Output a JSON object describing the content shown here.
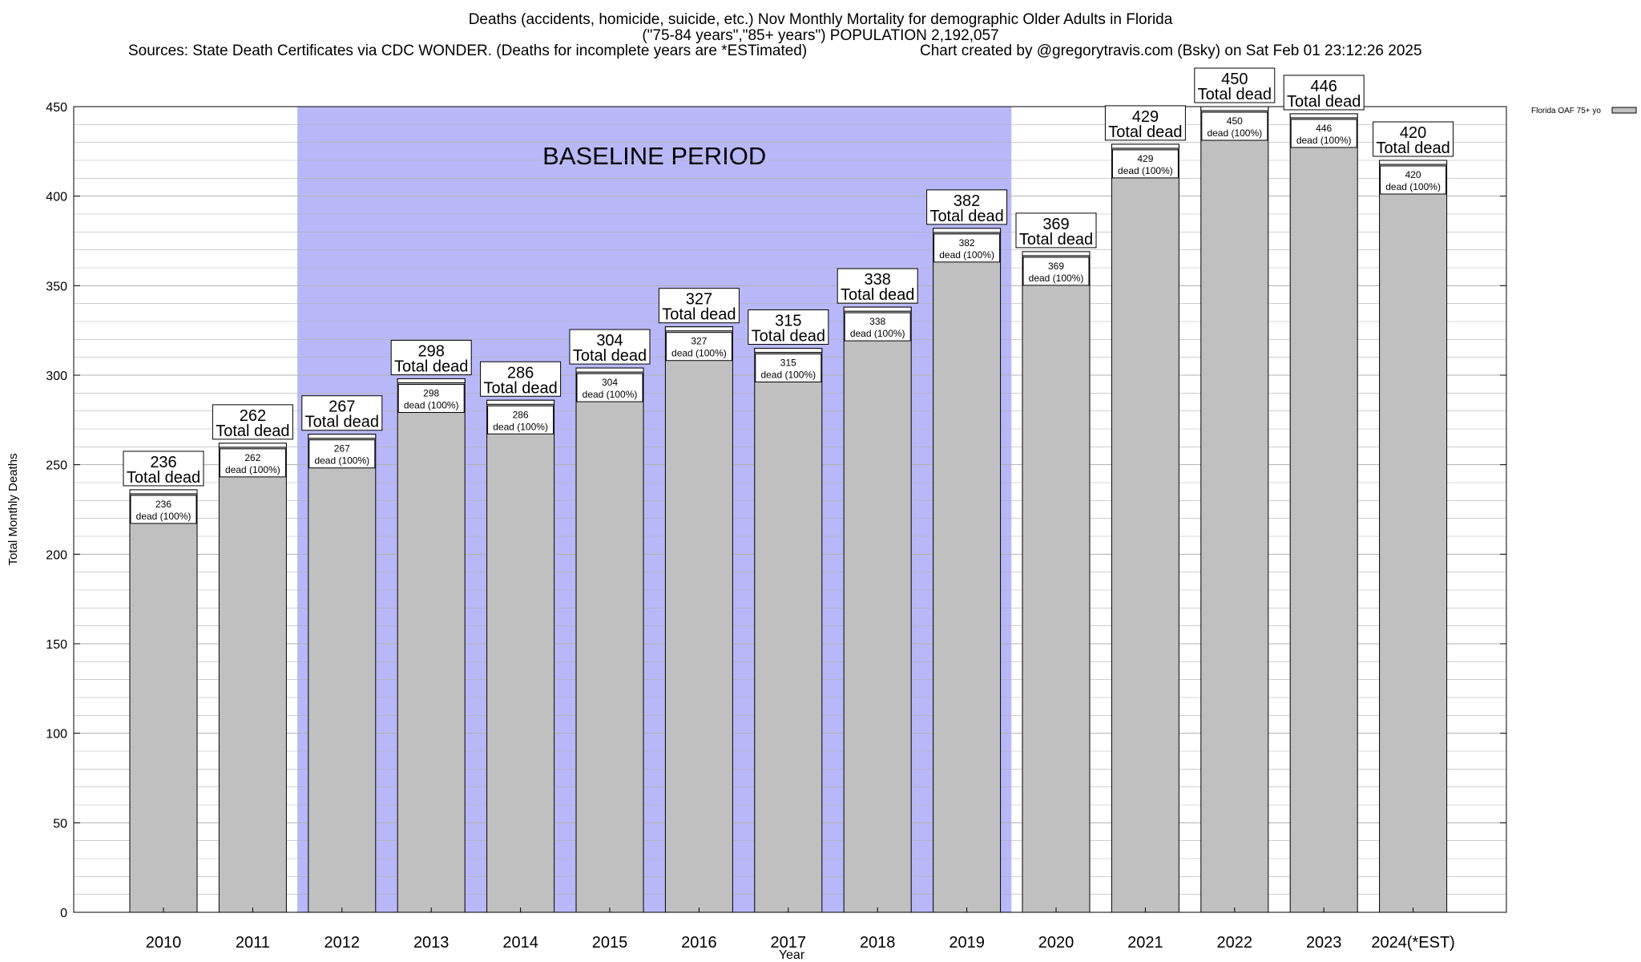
{
  "titles": {
    "line1": "Deaths (accidents, homicide, suicide, etc.) Nov Monthly Mortality for demographic Older Adults in Florida",
    "line2": "(\"75-84 years\",\"85+ years\") POPULATION 2,192,057",
    "sources": "Sources: State Death Certificates via CDC WONDER. (Deaths for incomplete years are *ESTimated)",
    "credit": "Chart created by @gregorytravis.com (Bsky) on Sat Feb 01 23:12:26 2025"
  },
  "colors": {
    "bar_fill": "#c0c0c0",
    "baseline_shade": "#b8b8f8",
    "grid": "#b0b0b0",
    "axis": "#000000"
  },
  "chart_data": {
    "type": "bar",
    "title": "Deaths (accidents, homicide, suicide, etc.) Nov Monthly Mortality for demographic Older Adults in Florida",
    "xlabel": "Year",
    "ylabel": "Total Monthly Deaths",
    "ylim": [
      0,
      450
    ],
    "yticks": [
      0,
      50,
      100,
      150,
      200,
      250,
      300,
      350,
      400,
      450
    ],
    "categories": [
      "2010",
      "2011",
      "2012",
      "2013",
      "2014",
      "2015",
      "2016",
      "2017",
      "2018",
      "2019",
      "2020",
      "2021",
      "2022",
      "2023",
      "2024(*EST)"
    ],
    "series": [
      {
        "name": "Florida OAF 75+ yo",
        "values": [
          236,
          262,
          267,
          298,
          286,
          304,
          327,
          315,
          338,
          382,
          369,
          429,
          450,
          446,
          420
        ]
      }
    ],
    "total_label": "Total dead",
    "inner_label": "dead (100%)",
    "baseline": {
      "label": "BASELINE PERIOD",
      "start": "2012",
      "end": "2019"
    },
    "legend": {
      "label": "Florida OAF 75+ yo",
      "position": "top-right"
    }
  }
}
